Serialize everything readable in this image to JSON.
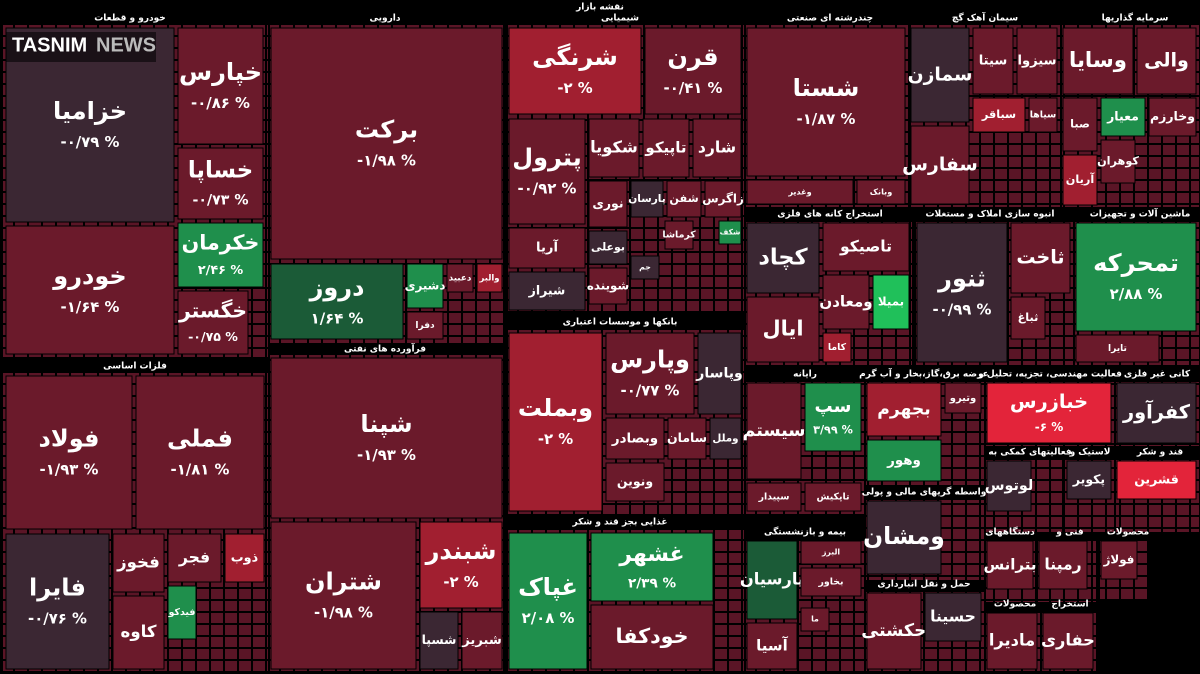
{
  "header": {
    "title": "نقشه بازار",
    "logo_main": "TASNIM",
    "logo_sub": "NEWS"
  },
  "sectors": [
    {
      "name": "خودرو و قطعات",
      "tiles": [
        {
          "symbol": "خزامیا",
          "color": "#3b2733",
          "change": "-۰/۷۹ %"
        },
        {
          "symbol": "خودرو",
          "color": "#6b1a2b",
          "change": "-۱/۶۴ %"
        },
        {
          "symbol": "خپارس",
          "color": "#6b1a2b",
          "change": "-۰/۸۶ %"
        },
        {
          "symbol": "خساپا",
          "color": "#6b1a2b",
          "change": "-۰/۷۳ %"
        },
        {
          "symbol": "خکرمان",
          "color": "#1f8f4c",
          "change": "۲/۴۶ %"
        },
        {
          "symbol": "خگستر",
          "color": "#6b1a2b",
          "change": "-۰/۷۵ %"
        }
      ]
    },
    {
      "name": "دارویی",
      "tiles": [
        {
          "symbol": "برکت",
          "color": "#6b1a2b",
          "change": "-۱/۹۸ %"
        },
        {
          "symbol": "دروز",
          "color": "#1b5b37",
          "change": "۱/۶۴ %"
        },
        {
          "symbol": "دشیری",
          "color": "#1f8f4c"
        },
        {
          "symbol": "دعبید",
          "color": "#6b1a2b"
        },
        {
          "symbol": "والبر",
          "color": "#a11f30"
        },
        {
          "symbol": "دفرا",
          "color": "#6b1a2b"
        }
      ]
    },
    {
      "name": "فرآورده های نفتی",
      "tiles": [
        {
          "symbol": "شپنا",
          "color": "#6b1a2b",
          "change": "-۱/۹۳ %"
        },
        {
          "symbol": "شتران",
          "color": "#6b1a2b",
          "change": "-۱/۹۸ %"
        },
        {
          "symbol": "شبندر",
          "color": "#a11f30",
          "change": "-۲ %"
        },
        {
          "symbol": "شسپا",
          "color": "#3b2733"
        },
        {
          "symbol": "شبریز",
          "color": "#6b1a2b"
        }
      ]
    },
    {
      "name": "فلزات اساسی",
      "tiles": [
        {
          "symbol": "فولاد",
          "color": "#6b1a2b",
          "change": "-۱/۹۳ %"
        },
        {
          "symbol": "فملی",
          "color": "#6b1a2b",
          "change": "-۱/۸۱ %"
        },
        {
          "symbol": "فایرا",
          "color": "#3b2733",
          "change": "-۰/۷۶ %"
        },
        {
          "symbol": "فخوز",
          "color": "#6b1a2b"
        },
        {
          "symbol": "فجر",
          "color": "#6b1a2b"
        },
        {
          "symbol": "ذوب",
          "color": "#a11f30"
        },
        {
          "symbol": "کاوه",
          "color": "#6b1a2b"
        },
        {
          "symbol": "فیدکو",
          "color": "#1f8f4c"
        }
      ]
    },
    {
      "name": "شیمیایی",
      "tiles": [
        {
          "symbol": "شرنگی",
          "color": "#a11f30",
          "change": "-۲ %"
        },
        {
          "symbol": "قرن",
          "color": "#6b1a2b",
          "change": "-۰/۴۱ %"
        },
        {
          "symbol": "پترول",
          "color": "#6b1a2b",
          "change": "-۰/۹۲ %"
        },
        {
          "symbol": "شکویا",
          "color": "#6b1a2b"
        },
        {
          "symbol": "تاپیکو",
          "color": "#6b1a2b"
        },
        {
          "symbol": "شارد",
          "color": "#6b1a2b"
        },
        {
          "symbol": "نوری",
          "color": "#6b1a2b"
        },
        {
          "symbol": "پارسان",
          "color": "#3b2733"
        },
        {
          "symbol": "شفن",
          "color": "#6b1a2b"
        },
        {
          "symbol": "زاگرس",
          "color": "#6b1a2b"
        },
        {
          "symbol": "آریا",
          "color": "#6b1a2b"
        },
        {
          "symbol": "بوعلی",
          "color": "#3b2733"
        },
        {
          "symbol": "کرماشا",
          "color": "#6b1a2b"
        },
        {
          "symbol": "شکف",
          "color": "#1f8f4c"
        },
        {
          "symbol": "شیراز",
          "color": "#3b2733"
        },
        {
          "symbol": "شوینده",
          "color": "#6b1a2b"
        },
        {
          "symbol": "جم",
          "color": "#3b2733"
        }
      ]
    },
    {
      "name": "بانکها و موسسات اعتباری",
      "tiles": [
        {
          "symbol": "وبملت",
          "color": "#a11f30",
          "change": "-۲ %"
        },
        {
          "symbol": "وپارس",
          "color": "#6b1a2b",
          "change": "-۰/۷۷ %"
        },
        {
          "symbol": "وپاسار",
          "color": "#3b2733"
        },
        {
          "symbol": "وبصادر",
          "color": "#6b1a2b"
        },
        {
          "symbol": "سامان",
          "color": "#6b1a2b"
        },
        {
          "symbol": "وملل",
          "color": "#3b2733"
        },
        {
          "symbol": "ونوین",
          "color": "#6b1a2b"
        }
      ]
    },
    {
      "name": "غذایی بجز قند و شکر",
      "tiles": [
        {
          "symbol": "غپاک",
          "color": "#1f8f4c",
          "change": "۲/۰۸ %"
        },
        {
          "symbol": "غشهر",
          "color": "#1f8f4c",
          "change": "۲/۳۹ %"
        },
        {
          "symbol": "خودکفا",
          "color": "#6b1a2b"
        }
      ]
    },
    {
      "name": "چندرشته ای صنعتی",
      "tiles": [
        {
          "symbol": "شستا",
          "color": "#6b1a2b",
          "change": "-۱/۸۷ %"
        },
        {
          "symbol": "وغدیر",
          "color": "#6b1a2b"
        },
        {
          "symbol": "وبانک",
          "color": "#6b1a2b"
        }
      ]
    },
    {
      "name": "سیمان آهک گچ",
      "tiles": [
        {
          "symbol": "سمازن",
          "color": "#3b2733"
        },
        {
          "symbol": "سیتا",
          "color": "#6b1a2b"
        },
        {
          "symbol": "سیزوا",
          "color": "#6b1a2b"
        },
        {
          "symbol": "سباقر",
          "color": "#a11f30"
        },
        {
          "symbol": "سیاها",
          "color": "#6b1a2b"
        },
        {
          "symbol": "سفارس",
          "color": "#6b1a2b"
        }
      ]
    },
    {
      "name": "سرمایه گذاریها",
      "tiles": [
        {
          "symbol": "وسایا",
          "color": "#6b1a2b"
        },
        {
          "symbol": "والی",
          "color": "#6b1a2b"
        },
        {
          "symbol": "صبا",
          "color": "#6b1a2b"
        },
        {
          "symbol": "معیار",
          "color": "#1f8f4c"
        },
        {
          "symbol": "وخارزم",
          "color": "#6b1a2b"
        },
        {
          "symbol": "کوهران",
          "color": "#6b1a2b"
        },
        {
          "symbol": "آریان",
          "color": "#a11f30"
        }
      ]
    },
    {
      "name": "استخراج کانه های فلزی",
      "tiles": [
        {
          "symbol": "کچاد",
          "color": "#3b2733"
        },
        {
          "symbol": "تاصیکو",
          "color": "#6b1a2b"
        },
        {
          "symbol": "ومعادن",
          "color": "#6b1a2b"
        },
        {
          "symbol": "بمیلا",
          "color": "#20c05a"
        },
        {
          "symbol": "ایال",
          "color": "#6b1a2b"
        },
        {
          "symbol": "کاما",
          "color": "#a11f30"
        }
      ]
    },
    {
      "name": "انبوه سازی املاک و مستغلات",
      "tiles": [
        {
          "symbol": "ثنور",
          "color": "#3b2733",
          "change": "-۰/۹۹ %"
        },
        {
          "symbol": "ثاخت",
          "color": "#6b1a2b"
        },
        {
          "symbol": "ثباغ",
          "color": "#6b1a2b"
        }
      ]
    },
    {
      "name": "ماشین آلات و تجهیزات",
      "tiles": [
        {
          "symbol": "تمحرکه",
          "color": "#1f8f4c",
          "change": "۲/۸۸ %"
        },
        {
          "symbol": "تایرا",
          "color": "#6b1a2b"
        }
      ]
    },
    {
      "name": "رایانه",
      "tiles": [
        {
          "symbol": "سیستم",
          "color": "#6b1a2b"
        },
        {
          "symbol": "سپ",
          "color": "#1f8f4c",
          "change": "۳/۹۹ %"
        },
        {
          "symbol": "سپیدار",
          "color": "#6b1a2b"
        },
        {
          "symbol": "تاپکیش",
          "color": "#6b1a2b"
        }
      ]
    },
    {
      "name": "عرضه برق،گاز،بخار و آب گرم",
      "tiles": [
        {
          "symbol": "بجهرم",
          "color": "#a11f30"
        },
        {
          "symbol": "وتیرو",
          "color": "#6b1a2b"
        },
        {
          "symbol": "وهور",
          "color": "#1f8f4c"
        }
      ]
    },
    {
      "name": "فعالیت مهندسی، تجزیه، تحلیل و",
      "tiles": [
        {
          "symbol": "خبازرس",
          "color": "#e3243a",
          "change": "-۶ %"
        }
      ]
    },
    {
      "name": "کانی غیر فلزی",
      "tiles": [
        {
          "symbol": "کفرآور",
          "color": "#3b2733"
        }
      ]
    },
    {
      "name": "فعالیتهای کمکی به",
      "tiles": [
        {
          "symbol": "لوتوس",
          "color": "#3b2733"
        }
      ]
    },
    {
      "name": "لاستیک و",
      "tiles": [
        {
          "symbol": "پکویر",
          "color": "#3b2733"
        }
      ]
    },
    {
      "name": "قند و شکر",
      "tiles": [
        {
          "symbol": "قشرین",
          "color": "#e3243a"
        }
      ]
    },
    {
      "name": "واسطه گریهای مالی و پولی",
      "tiles": [
        {
          "symbol": "ومشان",
          "color": "#3b2733"
        }
      ]
    },
    {
      "name": "بیمه و بازنشستگی",
      "tiles": [
        {
          "symbol": "پارسیان",
          "color": "#1b5b37"
        },
        {
          "symbol": "البرز",
          "color": "#6b1a2b"
        },
        {
          "symbol": "بخاور",
          "color": "#6b1a2b"
        },
        {
          "symbol": "آسیا",
          "color": "#6b1a2b"
        },
        {
          "symbol": "ما",
          "color": "#6b1a2b"
        }
      ]
    },
    {
      "name": "حمل و نقل انبارداری",
      "tiles": [
        {
          "symbol": "حکشتی",
          "color": "#6b1a2b"
        },
        {
          "symbol": "حسینا",
          "color": "#3b2733"
        }
      ]
    },
    {
      "name": "دستگاههای",
      "tiles": [
        {
          "symbol": "بترانس",
          "color": "#6b1a2b"
        }
      ]
    },
    {
      "name": "فنی و",
      "tiles": [
        {
          "symbol": "رمپنا",
          "color": "#6b1a2b"
        }
      ]
    },
    {
      "name": "محصولات",
      "tiles": [
        {
          "symbol": "فولاژ",
          "color": "#6b1a2b"
        }
      ]
    },
    {
      "name": "محصولات",
      "tiles": [
        {
          "symbol": "مادیرا",
          "color": "#6b1a2b"
        }
      ]
    },
    {
      "name": "استخراج",
      "tiles": [
        {
          "symbol": "حفاری",
          "color": "#6b1a2b"
        }
      ]
    }
  ]
}
